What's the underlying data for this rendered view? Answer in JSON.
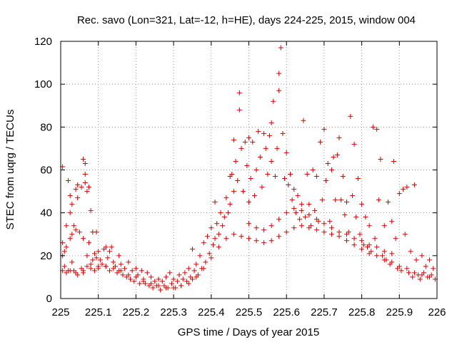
{
  "chart_data": {
    "type": "scatter",
    "title": "Rec. savo (Lon=321, Lat=-12, h=HE), days 224-225, 2015, window 004",
    "xlabel": "GPS time / Days of year 2015",
    "ylabel": "STEC from uqrg / TECUs",
    "xlim": [
      225,
      226
    ],
    "ylim": [
      0,
      120
    ],
    "xticks": [
      225,
      225.1,
      225.2,
      225.3,
      225.4,
      225.5,
      225.6,
      225.7,
      225.8,
      225.9,
      226
    ],
    "xtick_labels": [
      "225",
      "225.1",
      "225.2",
      "225.3",
      "225.4",
      "225.5",
      "225.6",
      "225.7",
      "225.8",
      "225.9",
      "226"
    ],
    "yticks": [
      0,
      20,
      40,
      60,
      80,
      100,
      120
    ],
    "ytick_labels": [
      "0",
      "20",
      "40",
      "60",
      "80",
      "100",
      "120"
    ],
    "grid": true,
    "marker": "+",
    "color": "#d40000",
    "points": [
      [
        225.005,
        61.5
      ],
      [
        225.005,
        26
      ],
      [
        225.005,
        20
      ],
      [
        225.005,
        13
      ],
      [
        225.01,
        22
      ],
      [
        225.01,
        15
      ],
      [
        225.015,
        34
      ],
      [
        225.015,
        24
      ],
      [
        225.015,
        12
      ],
      [
        225.02,
        55
      ],
      [
        225.025,
        48
      ],
      [
        225.025,
        40
      ],
      [
        225.025,
        28
      ],
      [
        225.025,
        13
      ],
      [
        225.03,
        44
      ],
      [
        225.03,
        30
      ],
      [
        225.03,
        17
      ],
      [
        225.035,
        34
      ],
      [
        225.035,
        13
      ],
      [
        225.04,
        51
      ],
      [
        225.04,
        32
      ],
      [
        225.045,
        53
      ],
      [
        225.045,
        47
      ],
      [
        225.045,
        11
      ],
      [
        225.05,
        31
      ],
      [
        225.055,
        52
      ],
      [
        225.055,
        14
      ],
      [
        225.06,
        65
      ],
      [
        225.06,
        28
      ],
      [
        225.06,
        13
      ],
      [
        225.065,
        63
      ],
      [
        225.065,
        58
      ],
      [
        225.065,
        54
      ],
      [
        225.07,
        50
      ],
      [
        225.07,
        20
      ],
      [
        225.07,
        15
      ],
      [
        225.075,
        52
      ],
      [
        225.075,
        26
      ],
      [
        225.08,
        41
      ],
      [
        225.08,
        16
      ],
      [
        225.085,
        31
      ],
      [
        225.085,
        18
      ],
      [
        225.09,
        21
      ],
      [
        225.09,
        13
      ],
      [
        225.095,
        31
      ],
      [
        225.095,
        19
      ],
      [
        225.1,
        22
      ],
      [
        225.1,
        15
      ],
      [
        225.105,
        18
      ],
      [
        225.11,
        16
      ],
      [
        225.115,
        23
      ],
      [
        225.12,
        24
      ],
      [
        225.12,
        15
      ],
      [
        225.125,
        19
      ],
      [
        225.13,
        22
      ],
      [
        225.13,
        13
      ],
      [
        225.135,
        24
      ],
      [
        225.14,
        17
      ],
      [
        225.145,
        15
      ],
      [
        225.15,
        12
      ],
      [
        225.155,
        20
      ],
      [
        225.155,
        13
      ],
      [
        225.16,
        16
      ],
      [
        225.165,
        11
      ],
      [
        225.17,
        14
      ],
      [
        225.175,
        10
      ],
      [
        225.18,
        17
      ],
      [
        225.185,
        9
      ],
      [
        225.19,
        13
      ],
      [
        225.195,
        8
      ],
      [
        225.2,
        14
      ],
      [
        225.205,
        11
      ],
      [
        225.21,
        7
      ],
      [
        225.215,
        13
      ],
      [
        225.22,
        9
      ],
      [
        225.225,
        7
      ],
      [
        225.23,
        12
      ],
      [
        225.235,
        6
      ],
      [
        225.24,
        10
      ],
      [
        225.245,
        5
      ],
      [
        225.25,
        8
      ],
      [
        225.255,
        6
      ],
      [
        225.26,
        9
      ],
      [
        225.265,
        4
      ],
      [
        225.27,
        8
      ],
      [
        225.275,
        6
      ],
      [
        225.28,
        10
      ],
      [
        225.285,
        5
      ],
      [
        225.29,
        12
      ],
      [
        225.295,
        7
      ],
      [
        225.3,
        9
      ],
      [
        225.305,
        5
      ],
      [
        225.31,
        8
      ],
      [
        225.315,
        11
      ],
      [
        225.32,
        6
      ],
      [
        225.325,
        9
      ],
      [
        225.33,
        12
      ],
      [
        225.335,
        8
      ],
      [
        225.34,
        14
      ],
      [
        225.345,
        10
      ],
      [
        225.35,
        23
      ],
      [
        225.35,
        9
      ],
      [
        225.355,
        13
      ],
      [
        225.36,
        16
      ],
      [
        225.365,
        11
      ],
      [
        225.37,
        20
      ],
      [
        225.375,
        14
      ],
      [
        225.38,
        26
      ],
      [
        225.385,
        17
      ],
      [
        225.39,
        29
      ],
      [
        225.395,
        21
      ],
      [
        225.4,
        33
      ],
      [
        225.405,
        25
      ],
      [
        225.41,
        45
      ],
      [
        225.41,
        28
      ],
      [
        225.415,
        35
      ],
      [
        225.42,
        30
      ],
      [
        225.425,
        40
      ],
      [
        225.43,
        34
      ],
      [
        225.435,
        38
      ],
      [
        225.44,
        47
      ],
      [
        225.445,
        40
      ],
      [
        225.45,
        57
      ],
      [
        225.45,
        44
      ],
      [
        225.455,
        58
      ],
      [
        225.46,
        74
      ],
      [
        225.46,
        50
      ],
      [
        225.465,
        64
      ],
      [
        225.47,
        55
      ],
      [
        225.475,
        96
      ],
      [
        225.475,
        88
      ],
      [
        225.48,
        70
      ],
      [
        225.485,
        50
      ],
      [
        225.49,
        73
      ],
      [
        225.495,
        62
      ],
      [
        225.5,
        75
      ],
      [
        225.5,
        45
      ],
      [
        225.505,
        56
      ],
      [
        225.51,
        73
      ],
      [
        225.515,
        48
      ],
      [
        225.52,
        60
      ],
      [
        225.525,
        78
      ],
      [
        225.53,
        66
      ],
      [
        225.535,
        52
      ],
      [
        225.54,
        77
      ],
      [
        225.545,
        70
      ],
      [
        225.55,
        58
      ],
      [
        225.555,
        76
      ],
      [
        225.56,
        82
      ],
      [
        225.56,
        64
      ],
      [
        225.565,
        92
      ],
      [
        225.57,
        57
      ],
      [
        225.575,
        70
      ],
      [
        225.58,
        105
      ],
      [
        225.58,
        97
      ],
      [
        225.585,
        117
      ],
      [
        225.59,
        77
      ],
      [
        225.595,
        56
      ],
      [
        225.6,
        68
      ],
      [
        225.605,
        53
      ],
      [
        225.61,
        58
      ],
      [
        225.615,
        46
      ],
      [
        225.62,
        51
      ],
      [
        225.625,
        40
      ],
      [
        225.63,
        48
      ],
      [
        225.635,
        37
      ],
      [
        225.64,
        44
      ],
      [
        225.645,
        83
      ],
      [
        225.65,
        38
      ],
      [
        225.655,
        58
      ],
      [
        225.66,
        44
      ],
      [
        225.665,
        34
      ],
      [
        225.67,
        60
      ],
      [
        225.675,
        41
      ],
      [
        225.68,
        57
      ],
      [
        225.685,
        36
      ],
      [
        225.69,
        73
      ],
      [
        225.695,
        46
      ],
      [
        225.7,
        79
      ],
      [
        225.705,
        55
      ],
      [
        225.71,
        63
      ],
      [
        225.715,
        36
      ],
      [
        225.72,
        60
      ],
      [
        225.725,
        66
      ],
      [
        225.73,
        46
      ],
      [
        225.735,
        67
      ],
      [
        225.74,
        75
      ],
      [
        225.745,
        46
      ],
      [
        225.75,
        57
      ],
      [
        225.755,
        39
      ],
      [
        225.76,
        45
      ],
      [
        225.765,
        31
      ],
      [
        225.77,
        85
      ],
      [
        225.775,
        48
      ],
      [
        225.78,
        72
      ],
      [
        225.785,
        38
      ],
      [
        225.79,
        56
      ],
      [
        225.795,
        30
      ],
      [
        225.8,
        44
      ],
      [
        225.805,
        25
      ],
      [
        225.81,
        38
      ],
      [
        225.815,
        24
      ],
      [
        225.82,
        34
      ],
      [
        225.825,
        22
      ],
      [
        225.83,
        80
      ],
      [
        225.835,
        28
      ],
      [
        225.84,
        79
      ],
      [
        225.845,
        46
      ],
      [
        225.85,
        65
      ],
      [
        225.855,
        20
      ],
      [
        225.86,
        34
      ],
      [
        225.865,
        18
      ],
      [
        225.87,
        45
      ],
      [
        225.875,
        16
      ],
      [
        225.88,
        36
      ],
      [
        225.885,
        64
      ],
      [
        225.89,
        28
      ],
      [
        225.895,
        14
      ],
      [
        225.9,
        49
      ],
      [
        225.905,
        13
      ],
      [
        225.91,
        51
      ],
      [
        225.915,
        30
      ],
      [
        225.92,
        52
      ],
      [
        225.925,
        12
      ],
      [
        225.93,
        22
      ],
      [
        225.935,
        10
      ],
      [
        225.94,
        53
      ],
      [
        225.945,
        18
      ],
      [
        225.95,
        11
      ],
      [
        225.955,
        9
      ],
      [
        225.96,
        20
      ],
      [
        225.965,
        12
      ],
      [
        225.97,
        15
      ],
      [
        225.975,
        10
      ],
      [
        225.98,
        18
      ],
      [
        225.985,
        11
      ],
      [
        225.99,
        14
      ],
      [
        225.995,
        9
      ],
      [
        225.02,
        13
      ],
      [
        225.04,
        12
      ],
      [
        225.06,
        12
      ],
      [
        225.08,
        14
      ],
      [
        225.1,
        14
      ],
      [
        225.12,
        15
      ],
      [
        225.14,
        14
      ],
      [
        225.16,
        13
      ],
      [
        225.18,
        11
      ],
      [
        225.2,
        10
      ],
      [
        225.22,
        8
      ],
      [
        225.24,
        7
      ],
      [
        225.26,
        6
      ],
      [
        225.28,
        5
      ],
      [
        225.3,
        5
      ],
      [
        225.32,
        6
      ],
      [
        225.34,
        7
      ],
      [
        225.36,
        10
      ],
      [
        225.38,
        14
      ],
      [
        225.4,
        19
      ],
      [
        225.42,
        24
      ],
      [
        225.44,
        28
      ],
      [
        225.46,
        30
      ],
      [
        225.48,
        29
      ],
      [
        225.5,
        28
      ],
      [
        225.52,
        27
      ],
      [
        225.54,
        26
      ],
      [
        225.56,
        27
      ],
      [
        225.58,
        29
      ],
      [
        225.6,
        31
      ],
      [
        225.62,
        33
      ],
      [
        225.64,
        34
      ],
      [
        225.66,
        33
      ],
      [
        225.68,
        32
      ],
      [
        225.7,
        31
      ],
      [
        225.72,
        30
      ],
      [
        225.74,
        29
      ],
      [
        225.76,
        27
      ],
      [
        225.78,
        25
      ],
      [
        225.8,
        23
      ],
      [
        225.82,
        21
      ],
      [
        225.84,
        20
      ],
      [
        225.86,
        18
      ],
      [
        225.88,
        17
      ],
      [
        225.9,
        15
      ],
      [
        225.92,
        14
      ],
      [
        225.94,
        12
      ],
      [
        225.96,
        11
      ],
      [
        225.98,
        10
      ],
      [
        225.5,
        35
      ],
      [
        225.52,
        33
      ],
      [
        225.54,
        32
      ],
      [
        225.56,
        34
      ],
      [
        225.58,
        37
      ],
      [
        225.6,
        40
      ],
      [
        225.62,
        42
      ],
      [
        225.64,
        41
      ],
      [
        225.66,
        39
      ],
      [
        225.68,
        37
      ],
      [
        225.7,
        35
      ],
      [
        225.72,
        33
      ],
      [
        225.74,
        31
      ],
      [
        225.76,
        30
      ],
      [
        225.78,
        28
      ],
      [
        225.8,
        27
      ],
      [
        225.82,
        25
      ],
      [
        225.84,
        24
      ],
      [
        225.86,
        22
      ],
      [
        225.88,
        21
      ]
    ]
  }
}
